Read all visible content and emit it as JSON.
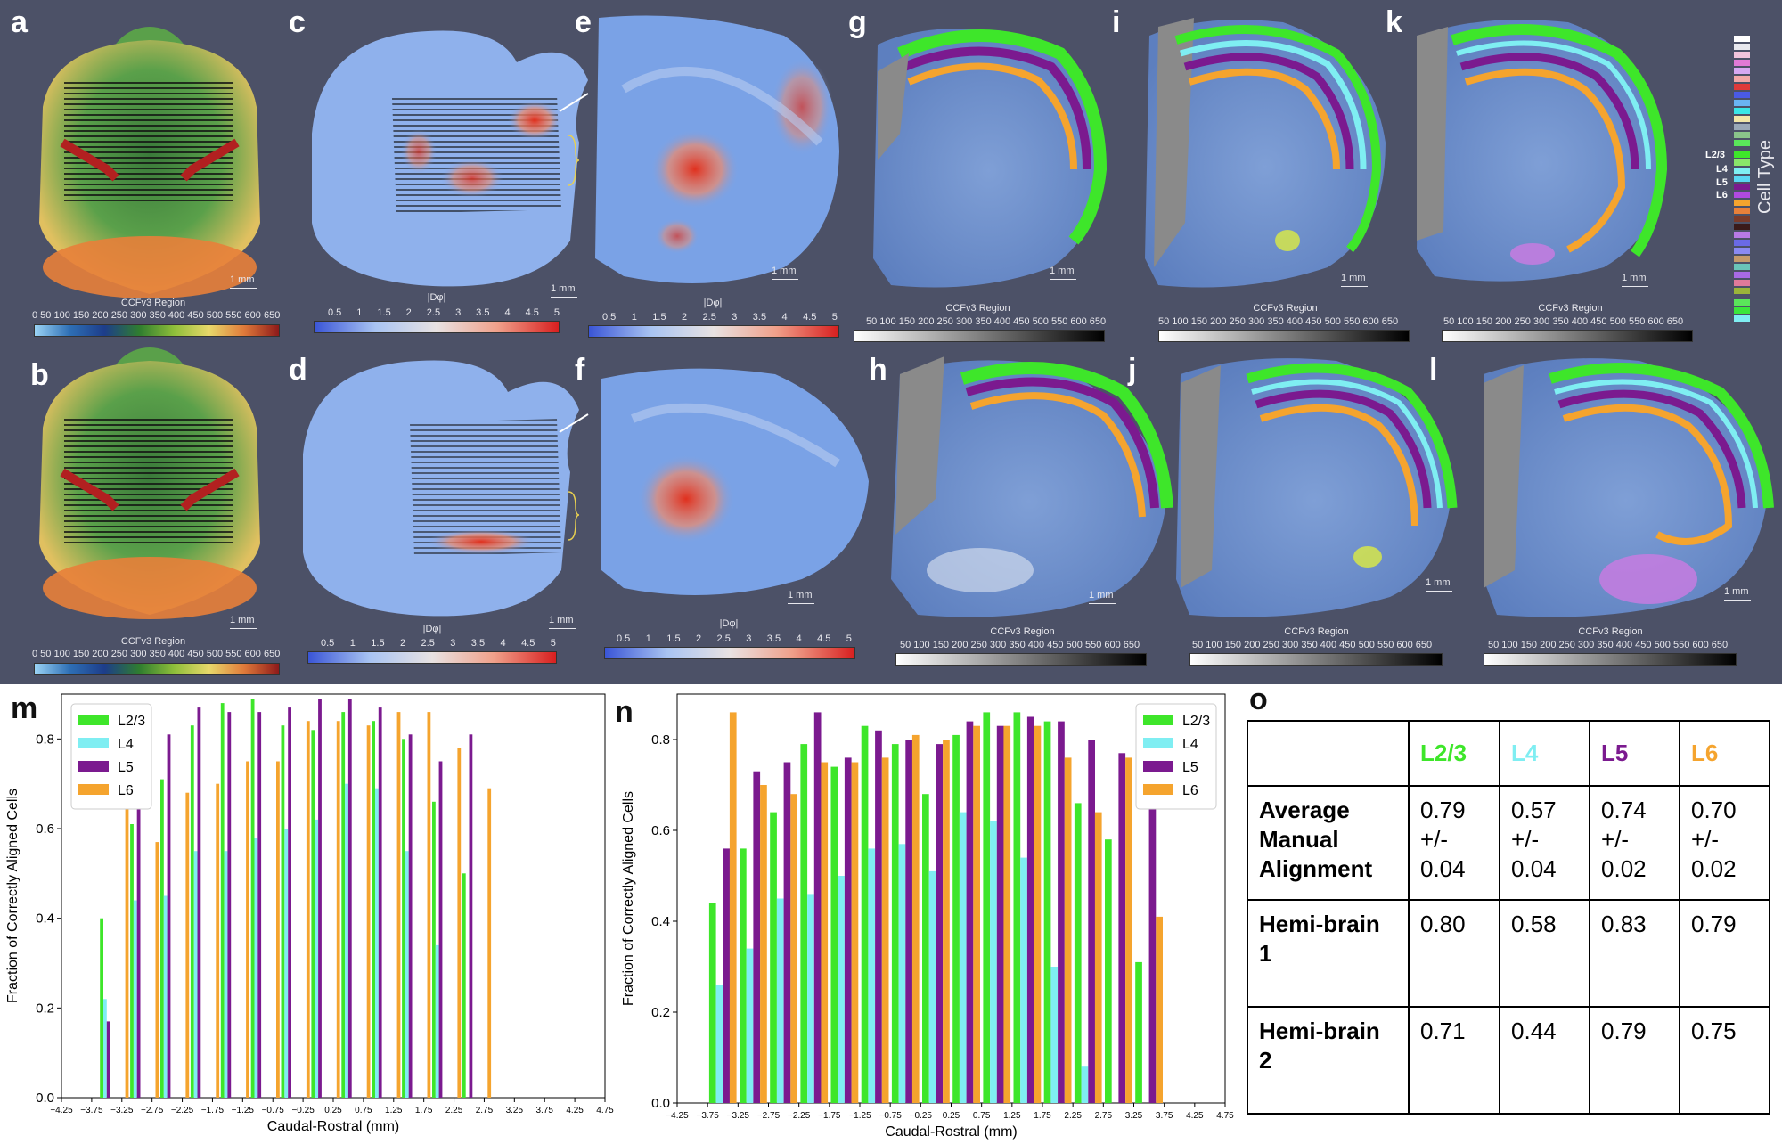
{
  "labels": {
    "a": "a",
    "b": "b",
    "c": "c",
    "d": "d",
    "e": "e",
    "f": "f",
    "g": "g",
    "h": "h",
    "i": "i",
    "j": "j",
    "k": "k",
    "l": "l",
    "m": "m",
    "n": "n",
    "o": "o"
  },
  "colorbars": {
    "ccf_title": "CCFv3 Region",
    "ccf_ticks_full": "0   50  100 150 200 250 300 350 400 450 500 550 600 650",
    "ccf_ticks_gray": "50  100 150 200 250 300 350 400 450 500 550 600 650",
    "dphi_title": "|Dφ|",
    "dphi_ticks": [
      "0.5",
      "1",
      "1.5",
      "2",
      "2.5",
      "3",
      "3.5",
      "4",
      "4.5",
      "5"
    ]
  },
  "scale_label": "1 mm",
  "cell_type_legend": {
    "title": "Cell Type",
    "layers": [
      "L2/3",
      "L4",
      "L5",
      "L6"
    ]
  },
  "colors": {
    "L2/3": "#3ee62a",
    "L4": "#7feef2",
    "L5": "#7b1a8f",
    "L6": "#f5a42e",
    "panel_bg": "#4c5167"
  },
  "chart_data": [
    {
      "type": "bar",
      "panel": "m",
      "xlabel": "Caudal-Rostral (mm)",
      "ylabel": "Fraction of Correctly Aligned Cells",
      "xlim": [
        -4.25,
        4.75
      ],
      "ylim": [
        0,
        0.9
      ],
      "xticks": [
        "−4.25",
        "−3.75",
        "−3.25",
        "−2.75",
        "−2.25",
        "−1.75",
        "−1.25",
        "−0.75",
        "−0.25",
        "0.25",
        "0.75",
        "1.25",
        "1.75",
        "2.25",
        "2.75",
        "3.25",
        "3.75",
        "4.25",
        "4.75"
      ],
      "yticks": [
        "0.0",
        "0.2",
        "0.4",
        "0.6",
        "0.8"
      ],
      "x": [
        -3.5,
        -3.25,
        -3.0,
        -2.75,
        -2.5,
        -2.25,
        -2.0,
        -1.75,
        -1.5,
        -1.25,
        -1.0,
        -0.75,
        -0.5,
        -0.25,
        0.0,
        0.25,
        0.5,
        0.75,
        1.0,
        1.25,
        1.5,
        1.75,
        2.0,
        2.25,
        2.5,
        2.75
      ],
      "series": [
        {
          "name": "L2/3",
          "values": [
            0.4,
            0,
            0.61,
            0,
            0.71,
            0,
            0.83,
            0,
            0.88,
            0,
            0.89,
            0,
            0.83,
            0,
            0.82,
            0,
            0.86,
            0,
            0.84,
            0,
            0.8,
            0,
            0.66,
            0,
            0.5,
            0
          ]
        },
        {
          "name": "L4",
          "values": [
            0.22,
            0,
            0.44,
            0,
            0.45,
            0,
            0.55,
            0,
            0.55,
            0,
            0.58,
            0,
            0.6,
            0,
            0.62,
            0,
            0.7,
            0,
            0.69,
            0,
            0.55,
            0,
            0.34,
            0,
            0,
            0
          ]
        },
        {
          "name": "L5",
          "values": [
            0.17,
            0,
            0.73,
            0,
            0.81,
            0,
            0.87,
            0,
            0.86,
            0,
            0.86,
            0,
            0.87,
            0,
            0.89,
            0,
            0.89,
            0,
            0.87,
            0,
            0.81,
            0,
            0.75,
            0,
            0.81,
            0
          ]
        },
        {
          "name": "L6",
          "values": [
            0,
            0.68,
            0,
            0.57,
            0,
            0.68,
            0,
            0.7,
            0,
            0.75,
            0,
            0.75,
            0,
            0.84,
            0,
            0.84,
            0,
            0.83,
            0,
            0.86,
            0,
            0.86,
            0,
            0.78,
            0,
            0.69
          ]
        }
      ]
    },
    {
      "type": "bar",
      "panel": "n",
      "xlabel": "Caudal-Rostral (mm)",
      "ylabel": "Fraction of Correctly Aligned Cells",
      "xlim": [
        -4.25,
        4.75
      ],
      "ylim": [
        0,
        0.9
      ],
      "xticks": [
        "−4.25",
        "−3.75",
        "−3.25",
        "−2.75",
        "−2.25",
        "−1.75",
        "−1.25",
        "−0.75",
        "−0.25",
        "0.25",
        "0.75",
        "1.25",
        "1.75",
        "2.25",
        "2.75",
        "3.25",
        "3.75",
        "4.25",
        "4.75"
      ],
      "yticks": [
        "0.0",
        "0.2",
        "0.4",
        "0.6",
        "0.8"
      ],
      "x": [
        -3.5,
        -3.0,
        -2.5,
        -2.0,
        -1.5,
        -1.0,
        -0.5,
        0.0,
        0.5,
        1.0,
        1.5,
        2.0,
        2.5,
        3.0,
        3.5
      ],
      "series": [
        {
          "name": "L2/3",
          "values": [
            0.44,
            0.56,
            0.64,
            0.79,
            0.74,
            0.83,
            0.79,
            0.68,
            0.81,
            0.86,
            0.86,
            0.84,
            0.66,
            0.58,
            0.31
          ]
        },
        {
          "name": "L4",
          "values": [
            0.26,
            0.34,
            0.45,
            0.46,
            0.5,
            0.56,
            0.57,
            0.51,
            0.64,
            0.62,
            0.54,
            0.3,
            0.08,
            0,
            0
          ]
        },
        {
          "name": "L5",
          "values": [
            0.56,
            0.73,
            0.75,
            0.86,
            0.76,
            0.82,
            0.8,
            0.79,
            0.84,
            0.83,
            0.85,
            0.84,
            0.8,
            0.77,
            0.78
          ]
        },
        {
          "name": "L6",
          "values": [
            0.86,
            0.7,
            0.68,
            0.75,
            0.75,
            0.76,
            0.81,
            0.8,
            0.83,
            0.83,
            0.83,
            0.76,
            0.64,
            0.76,
            0.41
          ]
        }
      ]
    }
  ],
  "table_o": {
    "headers": [
      "",
      "L2/3",
      "L4",
      "L5",
      "L6"
    ],
    "rows": [
      {
        "label": "Average Manual Alignment",
        "values": [
          "0.79 +/- 0.04",
          "0.57 +/- 0.04",
          "0.74 +/- 0.02",
          "0.70 +/- 0.02"
        ]
      },
      {
        "label": "Hemi-brain 1",
        "values": [
          "0.80",
          "0.58",
          "0.83",
          "0.79"
        ]
      },
      {
        "label": "Hemi-brain 2",
        "values": [
          "0.71",
          "0.44",
          "0.79",
          "0.75"
        ]
      }
    ]
  }
}
